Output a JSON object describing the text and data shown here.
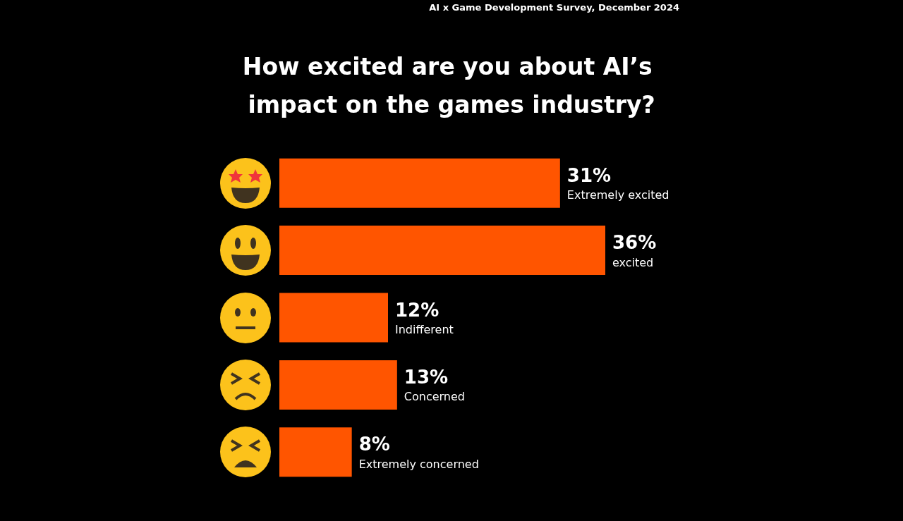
{
  "chart_data": {
    "type": "bar",
    "orientation": "horizontal",
    "title": "How excited are you about AI’s impact on the games industry?",
    "annotations": [
      "AI x Game Development Survey, December 2024"
    ],
    "categories": [
      "Extremely excited",
      "excited",
      "Indifferent",
      "Concerned",
      "Extremely concerned"
    ],
    "values": [
      31,
      36,
      12,
      13,
      8
    ],
    "value_labels": [
      "31%",
      "36%",
      "12%",
      "13%",
      "8%"
    ],
    "color": "#ff5500"
  }
}
